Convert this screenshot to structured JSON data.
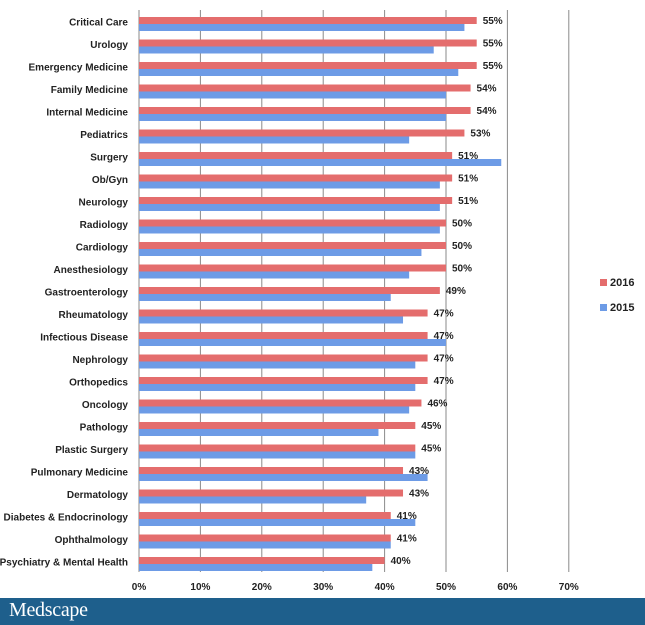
{
  "chart_data": {
    "type": "bar",
    "orientation": "horizontal",
    "categories": [
      "Critical Care",
      "Urology",
      "Emergency Medicine",
      "Family Medicine",
      "Internal Medicine",
      "Pediatrics",
      "Surgery",
      "Ob/Gyn",
      "Neurology",
      "Radiology",
      "Cardiology",
      "Anesthesiology",
      "Gastroenterology",
      "Rheumatology",
      "Infectious Disease",
      "Nephrology",
      "Orthopedics",
      "Oncology",
      "Pathology",
      "Plastic Surgery",
      "Pulmonary Medicine",
      "Dermatology",
      "Diabetes & Endocrinology",
      "Ophthalmology",
      "Psychiatry & Mental Health"
    ],
    "series": [
      {
        "name": "2016",
        "color": "#e46d6d",
        "values": [
          55,
          55,
          55,
          54,
          54,
          53,
          51,
          51,
          51,
          50,
          50,
          50,
          49,
          47,
          47,
          47,
          47,
          46,
          45,
          45,
          43,
          43,
          41,
          41,
          40
        ],
        "labels": [
          "55%",
          "55%",
          "55%",
          "54%",
          "54%",
          "53%",
          "51%",
          "51%",
          "51%",
          "50%",
          "50%",
          "50%",
          "49%",
          "47%",
          "47%",
          "47%",
          "47%",
          "46%",
          "45%",
          "45%",
          "43%",
          "43%",
          "41%",
          "41%",
          "40%"
        ]
      },
      {
        "name": "2015",
        "color": "#6d9be6",
        "values": [
          53,
          48,
          52,
          50,
          50,
          44,
          59,
          49,
          49,
          49,
          46,
          44,
          41,
          43,
          50,
          45,
          45,
          44,
          39,
          45,
          47,
          37,
          45,
          41,
          38
        ]
      }
    ],
    "xlim": [
      0,
      70
    ],
    "ticks": [
      0,
      10,
      20,
      30,
      40,
      50,
      60,
      70
    ],
    "tick_labels": [
      "0%",
      "10%",
      "20%",
      "30%",
      "40%",
      "50%",
      "60%",
      "70%"
    ],
    "grid": true,
    "legend": "right"
  },
  "footer": {
    "brand": "Medscape"
  }
}
